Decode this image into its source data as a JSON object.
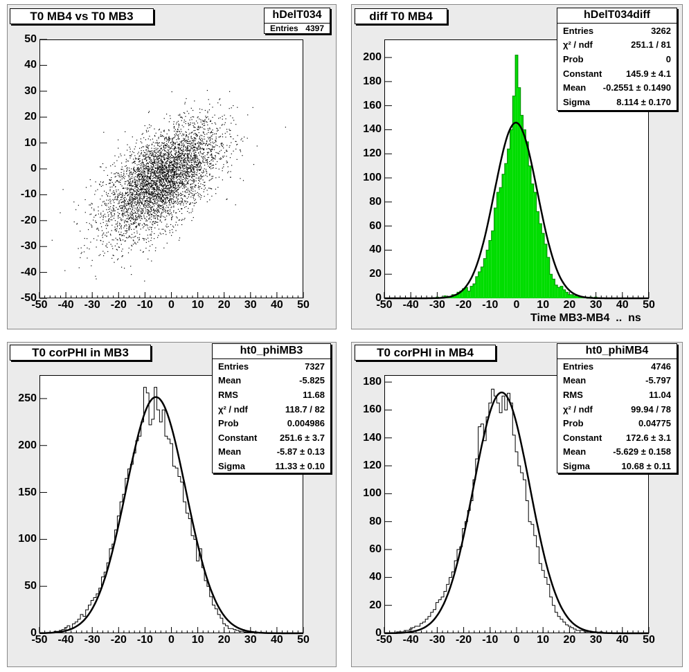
{
  "panels": {
    "tl": {
      "title": "T0 MB4 vs T0 MB3",
      "stats_name": "hDelT034",
      "stats": [
        {
          "k": "Entries",
          "v": "4397"
        }
      ]
    },
    "tr": {
      "title": "diff T0 MB4",
      "stats_name": "hDelT034diff",
      "stats": [
        {
          "k": "Entries",
          "v": "3262"
        },
        {
          "k": "χ² / ndf",
          "v": "251.1 / 81"
        },
        {
          "k": "Prob",
          "v": "0"
        },
        {
          "k": "Constant",
          "v": "145.9 ± 4.1"
        },
        {
          "k": "Mean",
          "v": "-0.2551 ± 0.1490"
        },
        {
          "k": "Sigma",
          "v": "8.114 ± 0.170"
        }
      ],
      "xlabel": "Time MB3-MB4  ..  ns"
    },
    "bl": {
      "title": "T0 corPHI in MB3",
      "stats_name": "ht0_phiMB3",
      "stats": [
        {
          "k": "Entries",
          "v": "7327"
        },
        {
          "k": "Mean",
          "v": "-5.825"
        },
        {
          "k": "RMS",
          "v": "11.68"
        },
        {
          "k": "χ² / ndf",
          "v": "118.7 / 82"
        },
        {
          "k": "Prob",
          "v": "0.004986"
        },
        {
          "k": "Constant",
          "v": "251.6 ± 3.7"
        },
        {
          "k": "Mean",
          "v": "-5.87 ± 0.13"
        },
        {
          "k": "Sigma",
          "v": "11.33 ± 0.10"
        }
      ]
    },
    "br": {
      "title": "T0 corPHI in MB4",
      "stats_name": "ht0_phiMB4",
      "stats": [
        {
          "k": "Entries",
          "v": "4746"
        },
        {
          "k": "Mean",
          "v": "-5.797"
        },
        {
          "k": "RMS",
          "v": "11.04"
        },
        {
          "k": "χ² / ndf",
          "v": "99.94 / 78"
        },
        {
          "k": "Prob",
          "v": "0.04775"
        },
        {
          "k": "Constant",
          "v": "172.6 ± 3.1"
        },
        {
          "k": "Mean",
          "v": "-5.629 ± 0.158"
        },
        {
          "k": "Sigma",
          "v": "10.68 ± 0.11"
        }
      ]
    }
  },
  "chart_data": [
    {
      "type": "scatter",
      "title": "T0 MB4 vs T0 MB3",
      "xlim": [
        -50,
        50
      ],
      "ylim": [
        -50,
        50
      ],
      "xticks": [
        -50,
        -40,
        -30,
        -20,
        -10,
        0,
        10,
        20,
        30,
        40,
        50
      ],
      "yticks": [
        -50,
        -40,
        -30,
        -20,
        -10,
        0,
        10,
        20,
        30,
        40,
        50
      ],
      "entries": 4397,
      "distribution": {
        "mean_x": -4,
        "mean_y": -4,
        "sigma_x": 11,
        "sigma_y": 11,
        "correlation": 0.6
      },
      "marker_color": "#000000"
    },
    {
      "type": "bar",
      "title": "diff T0 MB4",
      "xlabel": "Time MB3-MB4  ..  ns",
      "xlim": [
        -50,
        50
      ],
      "ylim": [
        0,
        215
      ],
      "xticks": [
        -50,
        -40,
        -30,
        -20,
        -10,
        0,
        10,
        20,
        30,
        40,
        50
      ],
      "yticks": [
        0,
        20,
        40,
        60,
        80,
        100,
        120,
        140,
        160,
        180,
        200
      ],
      "bin_width": 1,
      "x": [
        -30,
        -29,
        -28,
        -27,
        -26,
        -25,
        -24,
        -23,
        -22,
        -21,
        -20,
        -19,
        -18,
        -17,
        -16,
        -15,
        -14,
        -13,
        -12,
        -11,
        -10,
        -9,
        -8,
        -7,
        -6,
        -5,
        -4,
        -3,
        -2,
        -1,
        0,
        1,
        2,
        3,
        4,
        5,
        6,
        7,
        8,
        9,
        10,
        11,
        12,
        13,
        14,
        15,
        16,
        17,
        18,
        19,
        20,
        21,
        22,
        23,
        24,
        25,
        26,
        27,
        28,
        29,
        30
      ],
      "values": [
        1,
        0,
        1,
        2,
        1,
        1,
        3,
        3,
        5,
        6,
        8,
        9,
        6,
        10,
        12,
        18,
        22,
        26,
        33,
        40,
        48,
        56,
        75,
        88,
        92,
        103,
        112,
        124,
        140,
        168,
        202,
        175,
        152,
        140,
        130,
        110,
        95,
        88,
        72,
        62,
        54,
        45,
        34,
        20,
        16,
        11,
        9,
        10,
        7,
        5,
        3,
        3,
        2,
        2,
        1,
        1,
        1,
        0,
        1,
        0,
        1
      ],
      "fill_color": "#00dd00",
      "fit": {
        "function": "gaus",
        "constant": 145.9,
        "mean": -0.2551,
        "sigma": 8.114
      }
    },
    {
      "type": "line",
      "title": "T0 corPHI in MB3",
      "xlim": [
        -50,
        50
      ],
      "ylim": [
        0,
        275
      ],
      "xticks": [
        -50,
        -40,
        -30,
        -20,
        -10,
        0,
        10,
        20,
        30,
        40,
        50
      ],
      "yticks": [
        0,
        50,
        100,
        150,
        200,
        250
      ],
      "bin_width": 1,
      "x": [
        -45,
        -44,
        -43,
        -42,
        -41,
        -40,
        -39,
        -38,
        -37,
        -36,
        -35,
        -34,
        -33,
        -32,
        -31,
        -30,
        -29,
        -28,
        -27,
        -26,
        -25,
        -24,
        -23,
        -22,
        -21,
        -20,
        -19,
        -18,
        -17,
        -16,
        -15,
        -14,
        -13,
        -12,
        -11,
        -10,
        -9,
        -8,
        -7,
        -6,
        -5,
        -4,
        -3,
        -2,
        -1,
        0,
        1,
        2,
        3,
        4,
        5,
        6,
        7,
        8,
        9,
        10,
        11,
        12,
        13,
        14,
        15,
        16,
        17,
        18,
        19,
        20,
        21,
        22,
        23,
        24,
        25,
        26,
        27,
        28,
        29,
        30,
        31,
        32,
        33
      ],
      "values": [
        1,
        2,
        2,
        3,
        4,
        6,
        8,
        5,
        10,
        12,
        15,
        20,
        18,
        25,
        30,
        35,
        38,
        42,
        48,
        60,
        65,
        75,
        90,
        95,
        110,
        125,
        140,
        148,
        165,
        175,
        180,
        192,
        205,
        210,
        225,
        262,
        256,
        222,
        228,
        262,
        238,
        225,
        238,
        210,
        207,
        202,
        178,
        176,
        167,
        161,
        140,
        128,
        122,
        104,
        100,
        77,
        90,
        70,
        56,
        50,
        39,
        30,
        26,
        20,
        16,
        10,
        8,
        5,
        5,
        4,
        3,
        2,
        2,
        1,
        1,
        1,
        1,
        0,
        1
      ],
      "fit": {
        "function": "gaus",
        "constant": 251.6,
        "mean": -5.87,
        "sigma": 11.33
      }
    },
    {
      "type": "line",
      "title": "T0 corPHI in MB4",
      "xlim": [
        -50,
        50
      ],
      "ylim": [
        0,
        185
      ],
      "xticks": [
        -50,
        -40,
        -30,
        -20,
        -10,
        0,
        10,
        20,
        30,
        40,
        50
      ],
      "yticks": [
        0,
        20,
        40,
        60,
        80,
        100,
        120,
        140,
        160,
        180
      ],
      "bin_width": 1,
      "x": [
        -45,
        -44,
        -43,
        -42,
        -41,
        -40,
        -39,
        -38,
        -37,
        -36,
        -35,
        -34,
        -33,
        -32,
        -31,
        -30,
        -29,
        -28,
        -27,
        -26,
        -25,
        -24,
        -23,
        -22,
        -21,
        -20,
        -19,
        -18,
        -17,
        -16,
        -15,
        -14,
        -13,
        -12,
        -11,
        -10,
        -9,
        -8,
        -7,
        -6,
        -5,
        -4,
        -3,
        -2,
        -1,
        0,
        1,
        2,
        3,
        4,
        5,
        6,
        7,
        8,
        9,
        10,
        11,
        12,
        13,
        14,
        15,
        16,
        17,
        18,
        19,
        20,
        21,
        22,
        23,
        24,
        25,
        26,
        27,
        28,
        29,
        30,
        31,
        32,
        33
      ],
      "values": [
        1,
        1,
        1,
        2,
        2,
        3,
        4,
        5,
        5,
        7,
        8,
        10,
        12,
        15,
        17,
        22,
        24,
        26,
        30,
        35,
        40,
        44,
        52,
        60,
        62,
        75,
        80,
        88,
        95,
        110,
        125,
        148,
        150,
        138,
        155,
        165,
        175,
        170,
        165,
        158,
        170,
        160,
        172,
        165,
        142,
        130,
        120,
        115,
        110,
        95,
        80,
        78,
        70,
        62,
        50,
        45,
        40,
        35,
        26,
        20,
        15,
        12,
        10,
        8,
        6,
        5,
        4,
        3,
        2,
        2,
        2,
        1,
        1,
        1,
        1,
        1,
        0,
        1,
        0
      ],
      "fit": {
        "function": "gaus",
        "constant": 172.6,
        "mean": -5.629,
        "sigma": 10.68
      }
    }
  ]
}
